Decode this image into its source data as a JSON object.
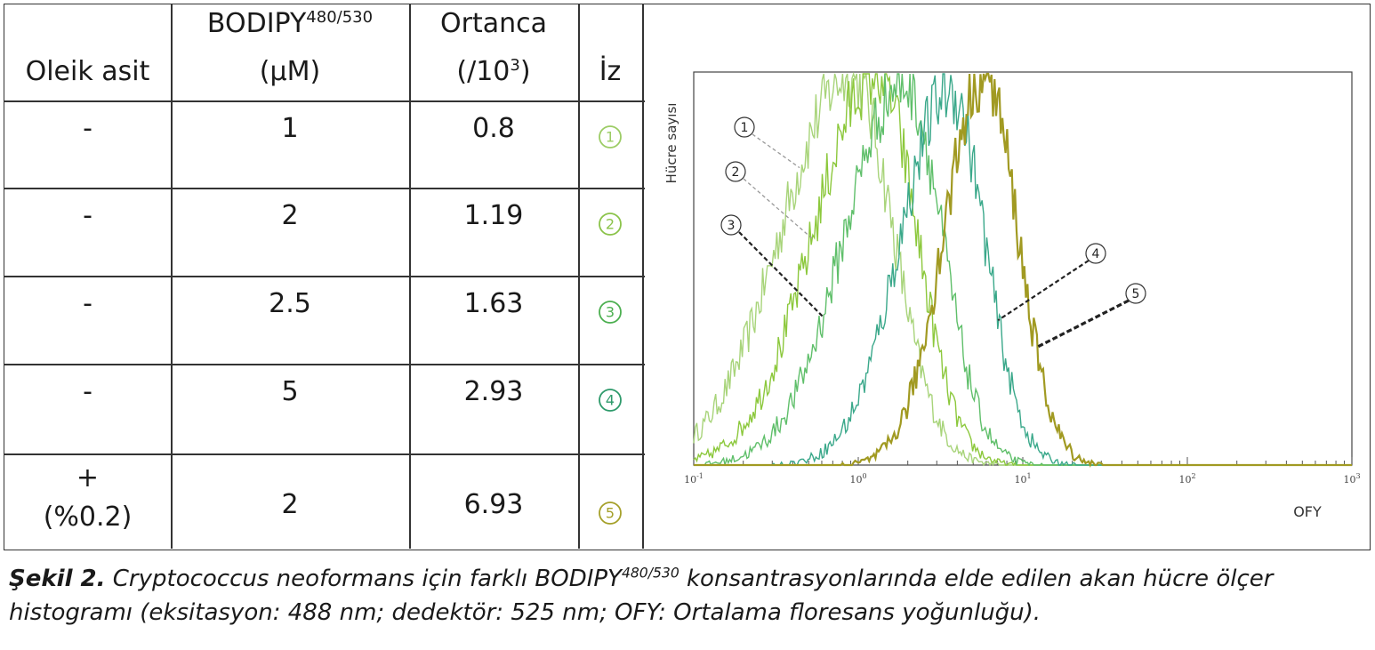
{
  "table": {
    "headers": {
      "col1": "Oleik asit",
      "col2_main": "BODIPY",
      "col2_sup": "480/530",
      "col2_unit": "(µM)",
      "col3_main": "Ortanca",
      "col3_unit_pre": "(/10",
      "col3_unit_sup": "3",
      "col3_unit_post": ")",
      "col4": "İz"
    },
    "rows": [
      {
        "oleic": "-",
        "oleic2": "",
        "bodipy": "1",
        "median": "0.8",
        "trace": "1",
        "color": "#9ccc65"
      },
      {
        "oleic": "-",
        "oleic2": "",
        "bodipy": "2",
        "median": "1.19",
        "trace": "2",
        "color": "#8bc34a"
      },
      {
        "oleic": "-",
        "oleic2": "",
        "bodipy": "2.5",
        "median": "1.63",
        "trace": "3",
        "color": "#4caf50"
      },
      {
        "oleic": "-",
        "oleic2": "",
        "bodipy": "5",
        "median": "2.93",
        "trace": "4",
        "color": "#2e9a6b"
      },
      {
        "oleic": "+",
        "oleic2": "(%0.2)",
        "bodipy": "2",
        "median": "6.93",
        "trace": "5",
        "color": "#a5a02a"
      }
    ]
  },
  "chart_data": {
    "type": "line",
    "xscale": "log",
    "xlim": [
      0.1,
      1000
    ],
    "xlabel": "OFY",
    "ylabel": "Hücre sayısı",
    "xticks": [
      {
        "base": "10",
        "exp": "-1"
      },
      {
        "base": "10",
        "exp": "0"
      },
      {
        "base": "10",
        "exp": "1"
      },
      {
        "base": "10",
        "exp": "2"
      },
      {
        "base": "10",
        "exp": "3"
      }
    ],
    "ylim": [
      0,
      1
    ],
    "series": [
      {
        "trace": "1",
        "color": "#a8d47a",
        "peak_x": 0.9,
        "spread": 0.3,
        "left_extra": 0.12,
        "peak_y": 1.0
      },
      {
        "trace": "2",
        "color": "#8cc83c",
        "peak_x": 1.3,
        "spread": 0.28,
        "left_extra": 0.1,
        "peak_y": 1.0
      },
      {
        "trace": "3",
        "color": "#5fbf6a",
        "peak_x": 1.9,
        "spread": 0.27,
        "left_extra": 0.09,
        "peak_y": 0.98
      },
      {
        "trace": "4",
        "color": "#3aa88a",
        "peak_x": 3.6,
        "spread": 0.25,
        "left_extra": 0.05,
        "peak_y": 0.96
      },
      {
        "trace": "5",
        "color": "#a19a22",
        "peak_x": 5.8,
        "spread": 0.24,
        "left_extra": 0.0,
        "peak_y": 1.0
      }
    ],
    "annotations": [
      {
        "label": "1"
      },
      {
        "label": "2"
      },
      {
        "label": "3"
      },
      {
        "label": "4"
      },
      {
        "label": "5"
      }
    ]
  },
  "caption": {
    "lead": "Şekil 2.",
    "text1": " Cryptococcus neoformans için farklı BODIPY",
    "sup": "480/530",
    "text2": " konsantrasyonlarında elde edilen akan hücre ölçer histogramı (eksitasyon: 488 nm; dedektör: 525 nm; OFY: Ortalama floresans yoğunluğu)."
  }
}
